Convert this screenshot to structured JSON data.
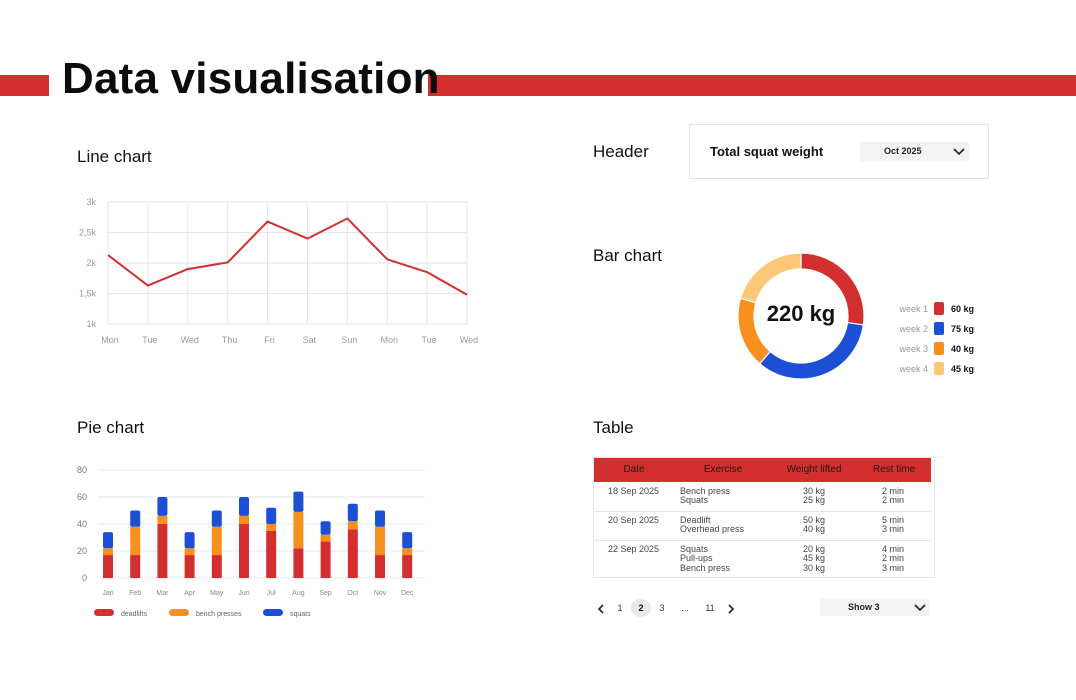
{
  "page": {
    "title": "Data visualisation"
  },
  "sections": {
    "line_chart": "Line chart",
    "header": "Header",
    "bar_chart": "Bar chart",
    "pie_chart": "Pie chart",
    "table": "Table"
  },
  "header_card": {
    "title": "Total squat weight",
    "month": "Oct 2025"
  },
  "donut": {
    "total": "220 kg",
    "legend": [
      {
        "week": "week 1",
        "value": "60 kg",
        "color": "#d42f2f"
      },
      {
        "week": "week 2",
        "value": "75 kg",
        "color": "#1a4fd6"
      },
      {
        "week": "week 3",
        "value": "40 kg",
        "color": "#f7901e"
      },
      {
        "week": "week 4",
        "value": "45 kg",
        "color": "#fcc878"
      }
    ]
  },
  "table": {
    "headers": [
      "Date",
      "Exercise",
      "Weight lifted",
      "Rest time"
    ],
    "rows": [
      {
        "date": "18 Sep 2025",
        "exercises": [
          "Bench press",
          "Squats"
        ],
        "weights": [
          "30 kg",
          "25 kg"
        ],
        "rests": [
          "2 min",
          "2 min"
        ]
      },
      {
        "date": "20 Sep 2025",
        "exercises": [
          "Deadlift",
          "Overhead press"
        ],
        "weights": [
          "50 kg",
          "40 kg"
        ],
        "rests": [
          "5 min",
          "3 min"
        ]
      },
      {
        "date": "22 Sep 2025",
        "exercises": [
          "Squats",
          "Pull-ups",
          "Bench press"
        ],
        "weights": [
          "20 kg",
          "45 kg",
          "30 kg"
        ],
        "rests": [
          "4 min",
          "2 min",
          "3 min"
        ]
      }
    ]
  },
  "pagination": {
    "pages": [
      "1",
      "2",
      "3",
      "...",
      "11"
    ],
    "active": "2",
    "show_label": "Show 3"
  },
  "chart_data": [
    {
      "type": "line",
      "categories": [
        "Mon",
        "Tue",
        "Wed",
        "Thu",
        "Fri",
        "Sat",
        "Sun",
        "Mon",
        "Tue",
        "Wed"
      ],
      "series": [
        {
          "values": [
            2130,
            1630,
            1900,
            2010,
            2680,
            2400,
            2730,
            2060,
            1850,
            1480
          ],
          "color": "#d42f2f"
        }
      ],
      "ylim": [
        1000,
        3000
      ],
      "yticks": [
        "1k",
        "1,5k",
        "2k",
        "2,5k",
        "3k"
      ],
      "grid": true
    },
    {
      "type": "bar",
      "stacked": true,
      "categories": [
        "Jan",
        "Feb",
        "Mar",
        "Apr",
        "May",
        "Jun",
        "Jul",
        "Aug",
        "Sep",
        "Oct",
        "Nov",
        "Dec"
      ],
      "series": [
        {
          "name": "deadlifts",
          "color": "#d42f2f",
          "values": [
            17,
            17,
            40,
            17,
            17,
            40,
            35,
            22,
            27,
            36,
            17,
            17
          ]
        },
        {
          "name": "bench presses",
          "color": "#f7901e",
          "values": [
            5,
            21,
            6,
            5,
            21,
            6,
            5,
            27,
            5,
            6,
            21,
            5
          ]
        },
        {
          "name": "squats",
          "color": "#1a4fd6",
          "values": [
            12,
            12,
            14,
            12,
            12,
            14,
            12,
            15,
            10,
            13,
            12,
            12
          ]
        }
      ],
      "ylim": [
        0,
        80
      ],
      "yticks": [
        0,
        20,
        40,
        60,
        80
      ],
      "legend": "bottom",
      "grid": true
    },
    {
      "type": "pie",
      "donut": true,
      "categories": [
        "week 1",
        "week 2",
        "week 3",
        "week 4"
      ],
      "values": [
        60,
        75,
        40,
        45
      ],
      "colors": [
        "#d42f2f",
        "#1a4fd6",
        "#f7901e",
        "#fcc878"
      ]
    }
  ]
}
